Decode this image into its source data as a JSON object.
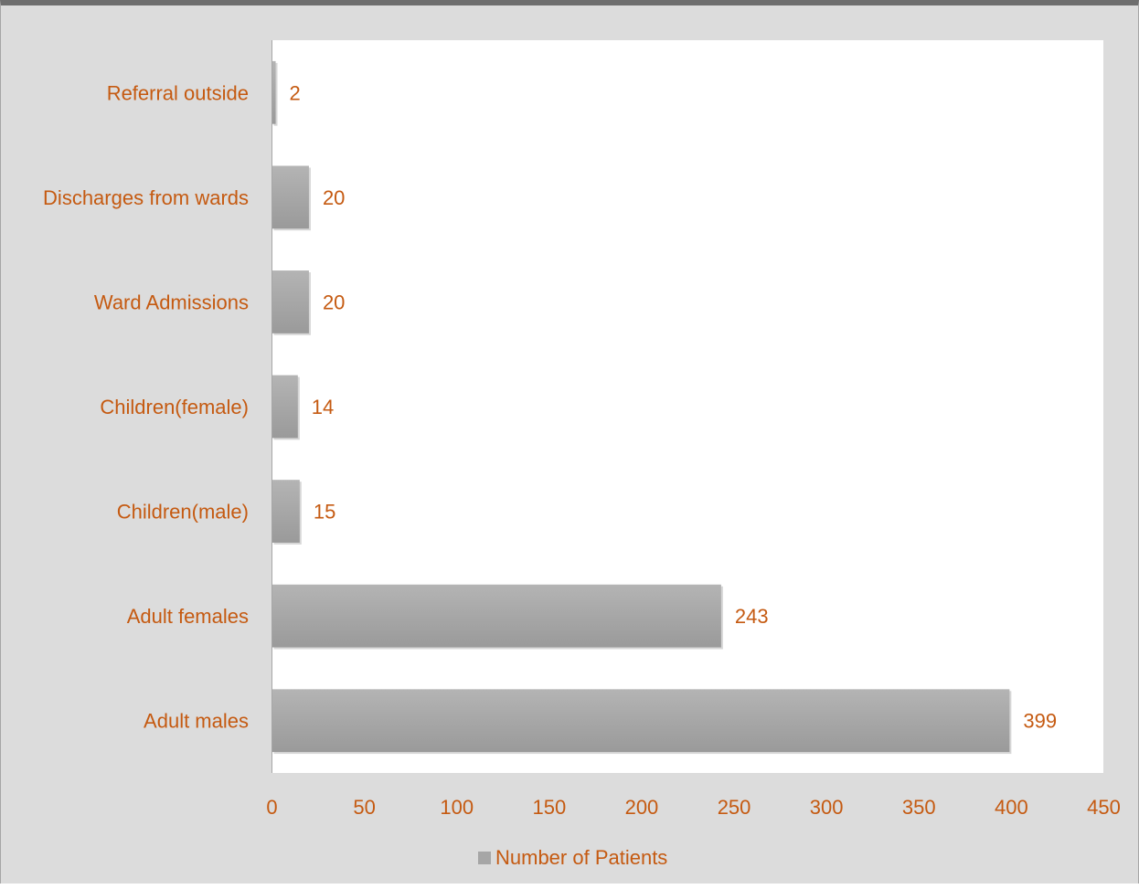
{
  "chart_data": {
    "type": "bar",
    "orientation": "horizontal",
    "categories": [
      "Referral outside",
      "Discharges from wards",
      "Ward Admissions",
      "Children(female)",
      "Children(male)",
      "Adult females",
      "Adult males"
    ],
    "series": [
      {
        "name": "Number of Patients",
        "values": [
          2,
          20,
          20,
          14,
          15,
          243,
          399
        ]
      }
    ],
    "xlim": [
      0,
      450
    ],
    "xticks": [
      "0",
      "50",
      "100",
      "150",
      "200",
      "250",
      "300",
      "350",
      "400",
      "450"
    ],
    "grid": false,
    "legend_position": "bottom",
    "colors": {
      "text": "#c55a11",
      "bar": "#a9a9a9",
      "plot_background": "#ffffff",
      "chart_background": "#dcdcdc",
      "axis": "#a6a6a6",
      "legend_marker": "#a6a6a6"
    }
  }
}
